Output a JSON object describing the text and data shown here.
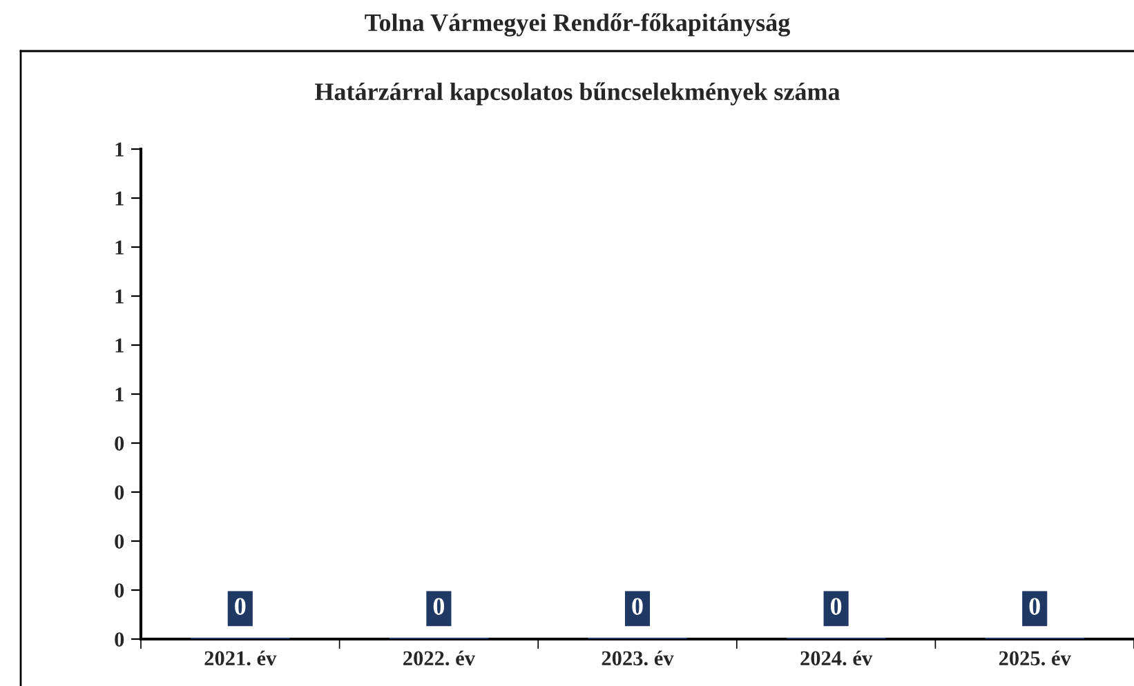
{
  "chart_data": {
    "type": "bar",
    "title": "Tolna Vármegyei Rendőr-főkapitányság",
    "subtitle": "Határzárral kapcsolatos bűncselekmények száma",
    "categories": [
      "2021. év",
      "2022. év",
      "2023. év",
      "2024. év",
      "2025. év"
    ],
    "values": [
      0,
      0,
      0,
      0,
      0
    ],
    "color": "#1f3864",
    "data_labels": true,
    "ylim": [
      0,
      1
    ],
    "yticks": [
      0,
      {
        "value": 0.1,
        "label": "0"
      },
      {
        "value": 0.2,
        "label": "0"
      },
      {
        "value": 0.3,
        "label": "0"
      },
      {
        "value": 0.4,
        "label": "0"
      },
      {
        "value": 0.5,
        "label": "1"
      },
      {
        "value": 0.6,
        "label": "1"
      },
      {
        "value": 0.7,
        "label": "1"
      },
      {
        "value": 0.8,
        "label": "1"
      },
      {
        "value": 0.9,
        "label": "1"
      },
      1
    ],
    "grid": false,
    "legend": false
  }
}
